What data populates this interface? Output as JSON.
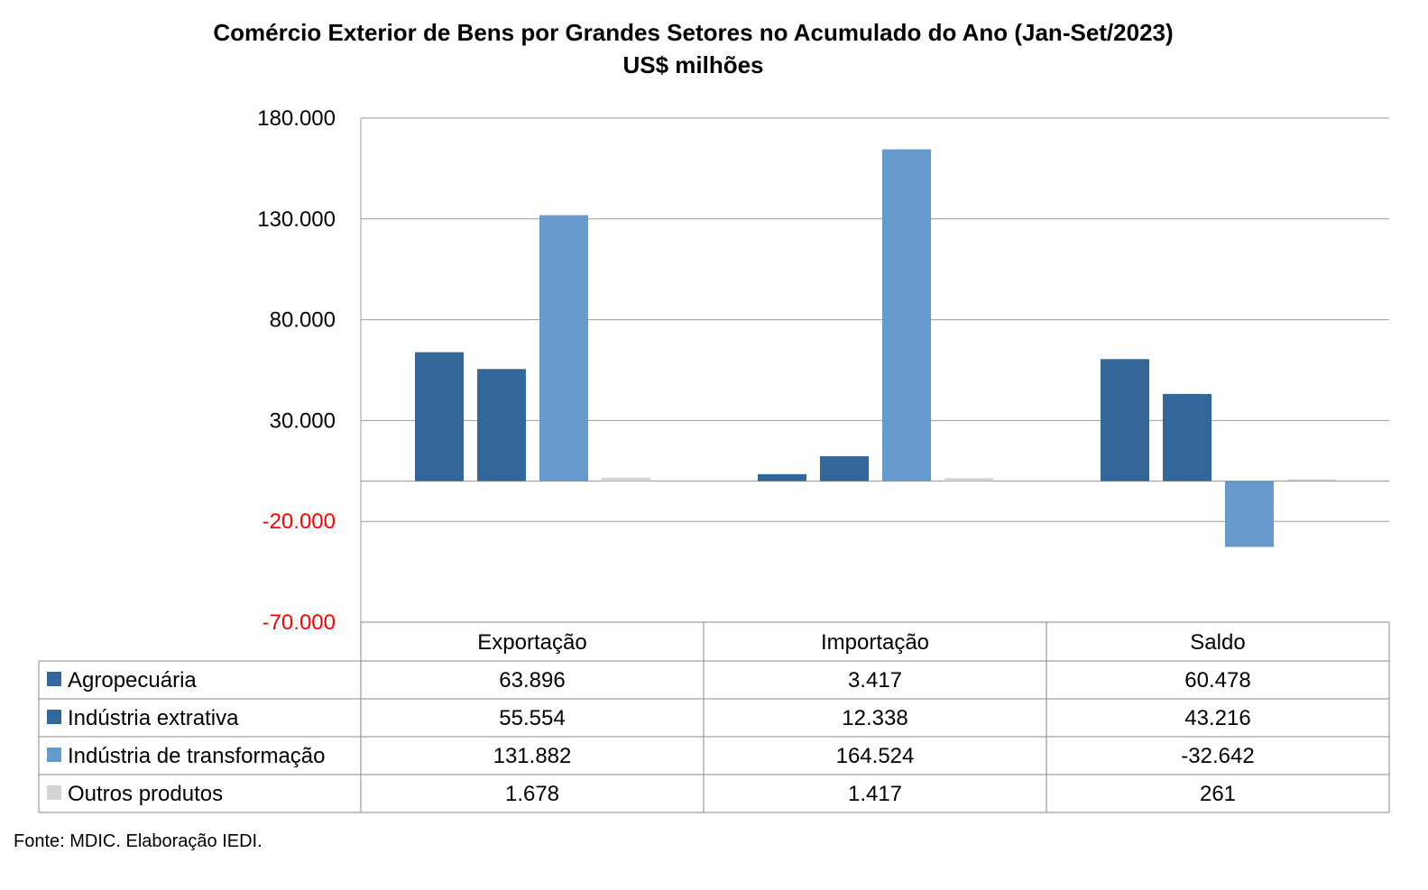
{
  "chart_data": {
    "type": "bar",
    "title": "Comércio Exterior de Bens por Grandes Setores no Acumulado do Ano (Jan-Set/2023)",
    "subtitle": "US$ milhões",
    "categories": [
      "Exportação",
      "Importação",
      "Saldo"
    ],
    "series": [
      {
        "name": "Agropecuária",
        "values": [
          63896,
          3417,
          60478
        ],
        "labels": [
          "63.896",
          "3.417",
          "60.478"
        ],
        "color": "#336699"
      },
      {
        "name": "Indústria extrativa",
        "values": [
          55554,
          12338,
          43216
        ],
        "labels": [
          "55.554",
          "12.338",
          "43.216"
        ],
        "color": "#336699"
      },
      {
        "name": "Indústria de transformação",
        "values": [
          131882,
          164524,
          -32642
        ],
        "labels": [
          "131.882",
          "164.524",
          "-32.642"
        ],
        "color": "#6699CC"
      },
      {
        "name": "Outros produtos",
        "values": [
          1678,
          1417,
          261
        ],
        "labels": [
          "1.678",
          "1.417",
          "261"
        ],
        "color": "#D3D3D3"
      }
    ],
    "ylim": [
      -70000,
      180000
    ],
    "yticks": [
      180000,
      130000,
      80000,
      30000,
      -20000,
      -70000
    ],
    "ytick_labels": [
      "180.000",
      "130.000",
      "80.000",
      "30.000",
      "-20.000",
      "-70.000"
    ],
    "negative_tick_color": "#FF0000",
    "grid": true,
    "legend": "data-table"
  },
  "source": "Fonte: MDIC. Elaboração IEDI."
}
